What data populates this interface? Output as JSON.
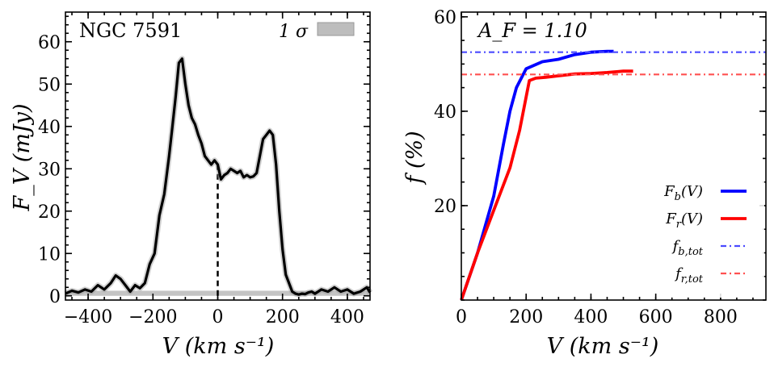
{
  "chart_data": [
    {
      "type": "line",
      "title": "",
      "annotation": "NGC 7591",
      "xlabel": "V (km s⁻¹)",
      "ylabel": "F_V (mJy)",
      "xlim": [
        -470,
        470
      ],
      "ylim": [
        -1,
        67
      ],
      "xticks": [
        -400,
        -200,
        0,
        200,
        400
      ],
      "xtick_labels": [
        "−400",
        "−200",
        "0",
        "200",
        "400"
      ],
      "yticks": [
        0,
        10,
        20,
        30,
        40,
        50,
        60
      ],
      "ytick_labels": [
        "0",
        "10",
        "20",
        "30",
        "40",
        "50",
        "60"
      ],
      "legend": {
        "position": "top-right",
        "label": "1 σ",
        "sigma_value": 1.2
      },
      "systemic_velocity": 0,
      "systemic_flux": 31,
      "series": [
        {
          "name": "spectrum",
          "color": "#000000",
          "x": [
            -470,
            -450,
            -430,
            -410,
            -390,
            -370,
            -350,
            -330,
            -315,
            -300,
            -285,
            -270,
            -255,
            -240,
            -225,
            -210,
            -195,
            -180,
            -165,
            -150,
            -140,
            -130,
            -120,
            -110,
            -100,
            -90,
            -80,
            -70,
            -60,
            -50,
            -40,
            -30,
            -20,
            -10,
            0,
            10,
            20,
            30,
            40,
            50,
            60,
            70,
            80,
            90,
            100,
            110,
            120,
            130,
            140,
            150,
            160,
            170,
            180,
            190,
            200,
            210,
            220,
            230,
            240,
            250,
            260,
            270,
            280,
            290,
            300,
            320,
            340,
            360,
            380,
            400,
            420,
            440,
            460,
            470
          ],
          "y": [
            0.5,
            1.2,
            0.8,
            1.5,
            1.0,
            2.5,
            1.5,
            3.0,
            4.8,
            4.0,
            2.5,
            1.0,
            2.5,
            1.8,
            3.0,
            7.5,
            10,
            19,
            24,
            33,
            40,
            47,
            55,
            56,
            50,
            45,
            42,
            40.5,
            38,
            36,
            33,
            32,
            31,
            32,
            31,
            27.5,
            28.5,
            29,
            30,
            29.5,
            29,
            29.5,
            28,
            28.5,
            28,
            28.2,
            29,
            33,
            37,
            38,
            39,
            38,
            31,
            20,
            11,
            5,
            3,
            1,
            0.5,
            0.3,
            0.5,
            0.4,
            0.8,
            1.0,
            0.5,
            1.5,
            1.0,
            2.0,
            1.0,
            1.5,
            0.5,
            1.0,
            2.0,
            0.8
          ]
        }
      ]
    },
    {
      "type": "line",
      "title": "",
      "annotation": "A_F = 1.10",
      "xlabel": "V (km s⁻¹)",
      "ylabel": "f (%)",
      "xlim": [
        0,
        940
      ],
      "ylim": [
        0,
        61
      ],
      "xticks": [
        0,
        200,
        400,
        600,
        800
      ],
      "xtick_labels": [
        "0",
        "200",
        "400",
        "600",
        "800"
      ],
      "yticks": [
        20,
        40,
        60
      ],
      "ytick_labels": [
        "20",
        "40",
        "60"
      ],
      "legend": {
        "position": "bottom-right",
        "entries": [
          "F_b(V)",
          "F_r(V)",
          "f_b,tot",
          "f_r,tot"
        ]
      },
      "series": [
        {
          "name": "F_b(V)",
          "color": "#0000ff",
          "x": [
            0,
            50,
            100,
            130,
            150,
            170,
            200,
            250,
            300,
            350,
            400,
            450,
            470
          ],
          "y": [
            0,
            10,
            22,
            33,
            40,
            45,
            49,
            50.5,
            51,
            52,
            52.5,
            52.7,
            52.7
          ]
        },
        {
          "name": "F_r(V)",
          "color": "#ff0000",
          "x": [
            0,
            50,
            100,
            150,
            180,
            200,
            210,
            230,
            260,
            300,
            350,
            400,
            450,
            500,
            530
          ],
          "y": [
            0,
            10,
            19,
            28,
            36,
            43,
            46.5,
            47,
            47.2,
            47.5,
            47.9,
            48,
            48.2,
            48.5,
            48.5
          ]
        },
        {
          "name": "f_b,tot",
          "color": "#4a4aff",
          "style": "dashdot",
          "x": [
            0,
            940
          ],
          "y": [
            52.5,
            52.5
          ]
        },
        {
          "name": "f_r,tot",
          "color": "#ff5050",
          "style": "dashdot",
          "x": [
            0,
            940
          ],
          "y": [
            47.8,
            47.8
          ]
        }
      ]
    }
  ]
}
